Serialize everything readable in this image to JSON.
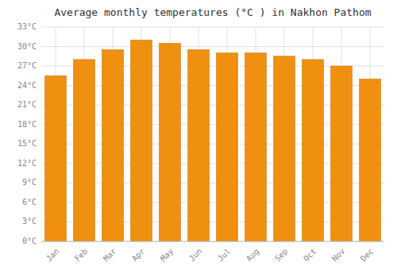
{
  "chart_data": {
    "type": "bar",
    "title": "Average monthly temperatures (°C ) in Nakhon Pathom",
    "categories": [
      "Jan",
      "Feb",
      "Mar",
      "Apr",
      "May",
      "Jun",
      "Jul",
      "Aug",
      "Sep",
      "Oct",
      "Nov",
      "Dec"
    ],
    "values": [
      25.5,
      28.0,
      29.5,
      31.0,
      30.5,
      29.5,
      29.0,
      29.0,
      28.5,
      28.0,
      27.0,
      25.0
    ],
    "color": "#F09010",
    "ylim": [
      0,
      33
    ],
    "yticks": [
      {
        "value": 0,
        "label": "0°C"
      },
      {
        "value": 3,
        "label": "3°C"
      },
      {
        "value": 6,
        "label": "6°C"
      },
      {
        "value": 9,
        "label": "9°C"
      },
      {
        "value": 12,
        "label": "12°C"
      },
      {
        "value": 15,
        "label": "15°C"
      },
      {
        "value": 18,
        "label": "18°C"
      },
      {
        "value": 21,
        "label": "21°C"
      },
      {
        "value": 24,
        "label": "24°C"
      },
      {
        "value": 27,
        "label": "27°C"
      },
      {
        "value": 30,
        "label": "30°C"
      },
      {
        "value": 33,
        "label": "33°C"
      }
    ],
    "grid": true
  }
}
